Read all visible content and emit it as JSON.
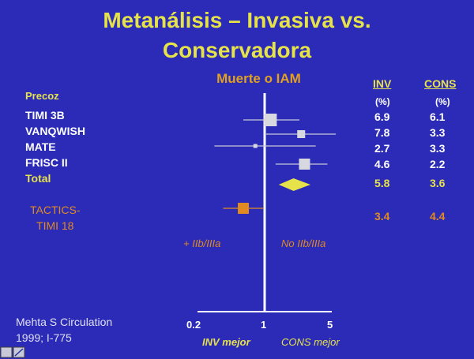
{
  "slide": {
    "title_line1": "Metanálisis – Invasiva vs.",
    "title_line2": "Conservadora",
    "subtitle": "Muerte o IAM",
    "section_label": "Precoz",
    "col_inv": "INV",
    "col_cons": "CONS",
    "unit_inv": "(%)",
    "unit_cons": "(%)",
    "favors_left": "+ IIb/IIIa",
    "favors_right": "No IIb/IIIa",
    "better_left": "INV mejor",
    "better_right": "CONS mejor",
    "reference_line1": "Mehta S Circulation",
    "reference_line2": "1999; I-775"
  },
  "colors": {
    "background": "#2b2bb8",
    "title": "#e6e24a",
    "accent_orange": "#e08a20",
    "marker": "#d8d8e0",
    "diamond": "#e6e24a"
  },
  "chart_data": {
    "type": "forest",
    "x_scale": "log",
    "xlim": [
      0.2,
      5
    ],
    "xticks": [
      "0.2",
      "1",
      "5"
    ],
    "reference_line": 1,
    "rows": [
      {
        "label": "TIMI 3B",
        "inv": "6.9",
        "cons": "6.1",
        "estimate": 1.15,
        "lo": 0.6,
        "hi": 2.3,
        "weight": 1.6,
        "marker": "square",
        "color": "#d8d8e0"
      },
      {
        "label": "VANQWISH",
        "inv": "7.8",
        "cons": "3.3",
        "estimate": 2.4,
        "lo": 1.0,
        "hi": 5.5,
        "weight": 1.0,
        "marker": "square",
        "color": "#d8d8e0"
      },
      {
        "label": "MATE",
        "inv": "2.7",
        "cons": "3.3",
        "estimate": 0.8,
        "lo": 0.3,
        "hi": 3.4,
        "weight": 0.5,
        "marker": "square",
        "color": "#d8d8e0"
      },
      {
        "label": "FRISC II",
        "inv": "4.6",
        "cons": "2.2",
        "estimate": 2.6,
        "lo": 1.3,
        "hi": 4.5,
        "weight": 1.4,
        "marker": "square",
        "color": "#d8d8e0"
      },
      {
        "label": "Total",
        "inv": "5.8",
        "cons": "3.6",
        "estimate": 2.0,
        "lo": 1.4,
        "hi": 3.0,
        "marker": "diamond",
        "color": "#e6e24a"
      },
      {
        "label": "TACTICS-\nTIMI 18",
        "inv": "3.4",
        "cons": "4.4",
        "estimate": 0.6,
        "lo": 0.37,
        "hi": 0.98,
        "weight": 1.4,
        "marker": "square",
        "color": "#e08a20"
      }
    ]
  }
}
